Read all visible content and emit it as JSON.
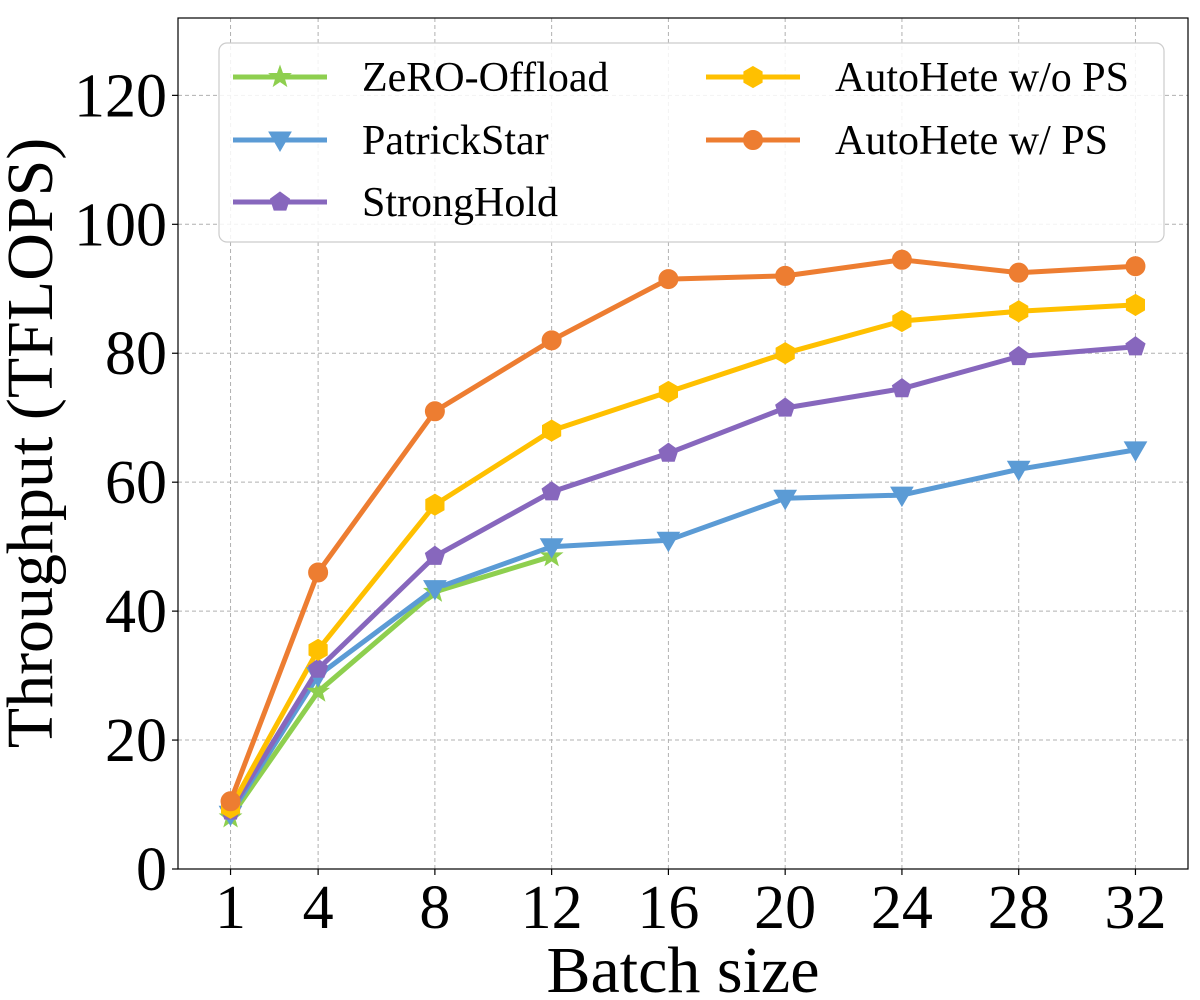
{
  "chart_data": {
    "type": "line",
    "title": "",
    "xlabel": "Batch size",
    "ylabel": "Throughput (TFLOPS)",
    "x": [
      1,
      4,
      8,
      12,
      16,
      20,
      24,
      28,
      32
    ],
    "xtick_labels": [
      "1",
      "4",
      "8",
      "12",
      "16",
      "20",
      "24",
      "28",
      "32"
    ],
    "yticks": [
      0,
      20,
      40,
      60,
      80,
      100,
      120
    ],
    "ytick_labels": [
      "0",
      "20",
      "40",
      "60",
      "80",
      "100",
      "120"
    ],
    "xlim": [
      -0.8,
      33.8
    ],
    "ylim": [
      0,
      132
    ],
    "grid": true,
    "legend_position": "top",
    "series": [
      {
        "name": "ZeRO-Offload",
        "color": "#8ecf4f",
        "marker": "star",
        "values": [
          8,
          27.5,
          43,
          48.5,
          null,
          null,
          null,
          null,
          null
        ]
      },
      {
        "name": "PatrickStar",
        "color": "#5b9bd5",
        "marker": "triangle-down",
        "values": [
          8.5,
          30,
          43.5,
          50,
          51,
          57.5,
          58,
          62,
          65
        ]
      },
      {
        "name": "StrongHold",
        "color": "#8767bd",
        "marker": "pentagon",
        "values": [
          9,
          31,
          48.5,
          58.5,
          64.5,
          71.5,
          74.5,
          79.5,
          81
        ]
      },
      {
        "name": "AutoHete w/o PS",
        "color": "#ffc000",
        "marker": "hexagon",
        "values": [
          9.5,
          34,
          56.5,
          68,
          74,
          80,
          85,
          86.5,
          87.5
        ]
      },
      {
        "name": "AutoHete w/ PS",
        "color": "#ed7d31",
        "marker": "circle",
        "values": [
          10.5,
          46,
          71,
          82,
          91.5,
          92,
          94.5,
          92.5,
          93.5
        ]
      }
    ]
  }
}
